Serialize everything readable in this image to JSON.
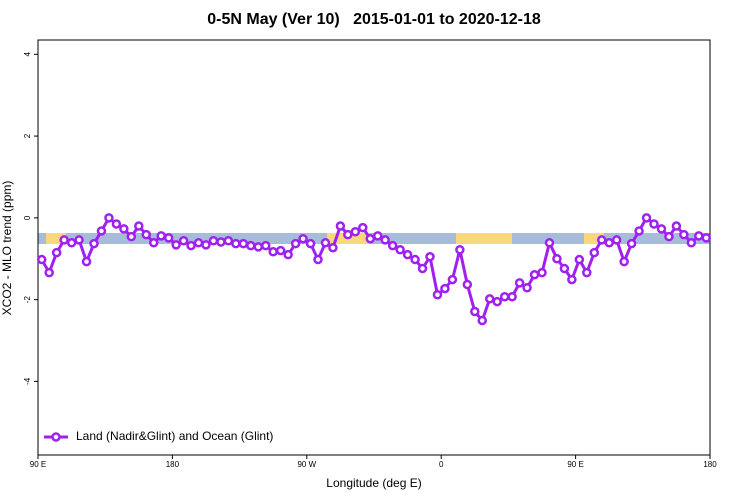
{
  "chart_data": {
    "type": "line",
    "title": "0-5N May (Ver 10)   2015-01-01 to 2020-12-18",
    "x_label": "Longitude (deg E)",
    "y_label": "XCO2 - MLO trend (ppm)",
    "xlim": [
      90,
      540
    ],
    "xticks": [
      {
        "value": 90,
        "label": "90 E"
      },
      180,
      {
        "value": 270,
        "label": "90 W"
      },
      {
        "value": 360,
        "label": "0"
      },
      {
        "value": 450,
        "label": "90 E"
      },
      {
        "value": 540,
        "label": "180"
      }
    ],
    "ylim": [
      -5.8,
      4.35
    ],
    "yticks": [
      -4,
      -2,
      0,
      2,
      4
    ],
    "legend": "bottomleft",
    "x": [
      92.5,
      97.5,
      102.5,
      107.5,
      112.5,
      117.5,
      122.5,
      127.5,
      132.5,
      137.5,
      142.5,
      147.5,
      152.5,
      157.5,
      162.5,
      167.5,
      172.5,
      177.5,
      182.5,
      187.5,
      192.5,
      197.5,
      202.5,
      207.5,
      212.5,
      217.5,
      222.5,
      227.5,
      232.5,
      237.5,
      242.5,
      247.5,
      252.5,
      257.5,
      262.5,
      267.5,
      272.5,
      277.5,
      282.5,
      287.5,
      292.5,
      297.5,
      302.5,
      307.5,
      312.5,
      317.5,
      322.5,
      327.5,
      332.5,
      337.5,
      342.5,
      347.5,
      352.5,
      357.5,
      362.5,
      367.5,
      372.5,
      377.5,
      382.5,
      387.5,
      392.5,
      397.5,
      402.5,
      407.5,
      412.5,
      417.5,
      422.5,
      427.5,
      432.5,
      437.5,
      442.5,
      447.5,
      452.5,
      457.5,
      462.5,
      467.5,
      472.5,
      477.5,
      482.5,
      487.5,
      492.5,
      497.5,
      502.5,
      507.5,
      512.5,
      517.5,
      522.5,
      527.5,
      532.5,
      537.5
    ],
    "series": [
      {
        "name": "Land (Nadir&Glint) and Ocean (Glint)",
        "color": "#a020f0",
        "values": [
          -1.02,
          -1.34,
          -0.85,
          -0.54,
          -0.61,
          -0.54,
          -1.07,
          -0.63,
          -0.32,
          0.0,
          -0.15,
          -0.27,
          -0.46,
          -0.2,
          -0.41,
          -0.61,
          -0.44,
          -0.49,
          -0.66,
          -0.56,
          -0.68,
          -0.61,
          -0.66,
          -0.56,
          -0.59,
          -0.56,
          -0.63,
          -0.63,
          -0.68,
          -0.71,
          -0.68,
          -0.83,
          -0.8,
          -0.9,
          -0.63,
          -0.51,
          -0.63,
          -1.02,
          -0.61,
          -0.73,
          -0.2,
          -0.41,
          -0.34,
          -0.24,
          -0.51,
          -0.44,
          -0.54,
          -0.68,
          -0.78,
          -0.9,
          -1.02,
          -1.24,
          -0.95,
          -1.88,
          -1.73,
          -1.51,
          -0.78,
          -1.63,
          -2.29,
          -2.51,
          -1.98,
          -2.05,
          -1.93,
          -1.93,
          -1.59,
          -1.71,
          -1.39,
          -1.34,
          -0.61,
          -1.0,
          -1.24,
          -1.51,
          -1.02,
          -1.34,
          -0.85,
          -0.54,
          -0.61,
          -0.54,
          -1.07,
          -0.63,
          -0.32,
          0.0,
          -0.15,
          -0.27,
          -0.46,
          -0.2,
          -0.41,
          -0.61,
          -0.44,
          -0.49
        ]
      }
    ]
  }
}
